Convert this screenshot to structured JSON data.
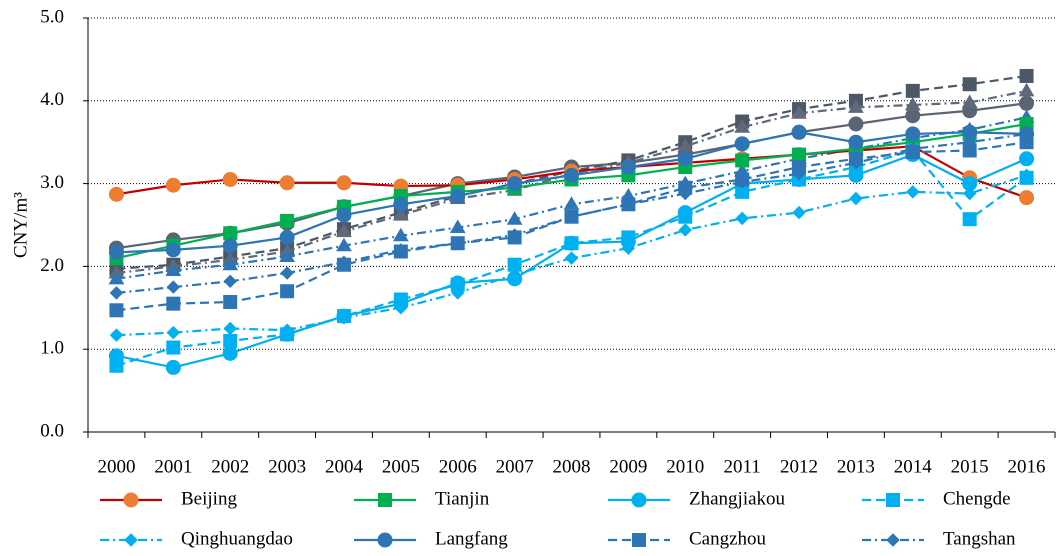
{
  "chart_data": {
    "type": "line",
    "y_label": "CNY/m³",
    "categories": [
      "2000",
      "2001",
      "2002",
      "2003",
      "2004",
      "2005",
      "2006",
      "2007",
      "2008",
      "2009",
      "2010",
      "2011",
      "2012",
      "2013",
      "2014",
      "2015",
      "2016"
    ],
    "ylim": [
      0,
      5
    ],
    "yticks": [
      {
        "value": 0,
        "label": "0.0"
      },
      {
        "value": 1,
        "label": "1.0"
      },
      {
        "value": 2,
        "label": "2.0"
      },
      {
        "value": 3,
        "label": "3.0"
      },
      {
        "value": 4,
        "label": "4.0"
      },
      {
        "value": 5,
        "label": "5.0"
      }
    ],
    "grid": true,
    "series": [
      {
        "color": "#5a6473",
        "marker": "circle",
        "dash": "solid",
        "values": [
          2.22,
          2.32,
          2.4,
          2.52,
          2.72,
          2.85,
          3.0,
          3.08,
          3.2,
          3.25,
          3.35,
          3.48,
          3.62,
          3.72,
          3.82,
          3.88,
          3.97
        ]
      },
      {
        "color": "#4d5867",
        "marker": "square",
        "dash": "dashed",
        "values": [
          1.97,
          2.02,
          2.12,
          2.22,
          2.45,
          2.65,
          2.85,
          3.0,
          3.15,
          3.28,
          3.5,
          3.75,
          3.9,
          4.0,
          4.12,
          4.2,
          4.3
        ]
      },
      {
        "color": "#60697a",
        "marker": "triangle",
        "dash": "dashdot",
        "values": [
          1.92,
          2.0,
          2.08,
          2.18,
          2.42,
          2.62,
          2.82,
          2.92,
          3.12,
          3.25,
          3.45,
          3.68,
          3.85,
          3.92,
          3.95,
          3.98,
          4.12
        ]
      },
      {
        "color": "#2e75b6",
        "marker": "triangle",
        "dash": "dashdot",
        "values": [
          1.85,
          1.95,
          2.02,
          2.12,
          2.25,
          2.37,
          2.47,
          2.57,
          2.75,
          2.85,
          3.0,
          3.15,
          3.3,
          3.42,
          3.55,
          3.65,
          3.8
        ]
      },
      {
        "name": "Beijing",
        "color": "#c00000",
        "marker_color": "#ed7d31",
        "marker": "circle",
        "dash": "solid",
        "values": [
          2.87,
          2.98,
          3.05,
          3.01,
          3.01,
          2.97,
          2.98,
          3.05,
          3.15,
          3.2,
          3.25,
          3.3,
          3.35,
          3.4,
          3.45,
          3.07,
          2.83
        ]
      },
      {
        "name": "Tianjin",
        "color": "#00b050",
        "marker": "square",
        "dash": "solid",
        "values": [
          2.1,
          2.25,
          2.4,
          2.55,
          2.72,
          2.85,
          2.9,
          2.95,
          3.05,
          3.1,
          3.2,
          3.28,
          3.35,
          3.42,
          3.5,
          3.6,
          3.72
        ]
      },
      {
        "name": "Zhangjiakou",
        "color": "#00b0f0",
        "marker": "circle",
        "dash": "solid",
        "values": [
          0.92,
          0.78,
          0.95,
          1.18,
          1.4,
          1.55,
          1.8,
          1.85,
          2.28,
          2.3,
          2.65,
          3.0,
          3.05,
          3.1,
          3.35,
          3.0,
          3.3
        ]
      },
      {
        "name": "Chengde",
        "color": "#00b0f0",
        "marker": "square",
        "dash": "dashed",
        "values": [
          0.8,
          1.02,
          1.1,
          1.18,
          1.4,
          1.6,
          1.78,
          2.02,
          2.28,
          2.35,
          2.6,
          2.9,
          3.05,
          3.2,
          3.4,
          2.57,
          3.07
        ]
      },
      {
        "name": "Qinghuangdao",
        "color": "#00b0f0",
        "marker": "diamond",
        "dash": "dashdot",
        "values": [
          1.17,
          1.2,
          1.25,
          1.23,
          1.38,
          1.5,
          1.68,
          1.9,
          2.1,
          2.22,
          2.44,
          2.58,
          2.65,
          2.82,
          2.9,
          2.88,
          3.1
        ]
      },
      {
        "name": "Langfang",
        "color": "#2e75b6",
        "marker": "circle",
        "dash": "solid",
        "values": [
          2.17,
          2.2,
          2.25,
          2.35,
          2.62,
          2.75,
          2.85,
          3.0,
          3.1,
          3.2,
          3.3,
          3.48,
          3.62,
          3.5,
          3.6,
          3.62,
          3.6
        ]
      },
      {
        "name": "Cangzhou",
        "color": "#2e75b6",
        "marker": "square",
        "dash": "dashed",
        "values": [
          1.47,
          1.55,
          1.57,
          1.7,
          2.02,
          2.18,
          2.28,
          2.35,
          2.6,
          2.75,
          2.95,
          3.05,
          3.2,
          3.3,
          3.38,
          3.4,
          3.5
        ]
      },
      {
        "name": "Tangshan",
        "color": "#2e75b6",
        "marker": "diamond",
        "dash": "dashdot",
        "values": [
          1.68,
          1.75,
          1.82,
          1.92,
          2.05,
          2.2,
          2.28,
          2.38,
          2.6,
          2.75,
          2.88,
          3.02,
          3.12,
          3.25,
          3.42,
          3.5,
          3.6
        ]
      }
    ]
  }
}
